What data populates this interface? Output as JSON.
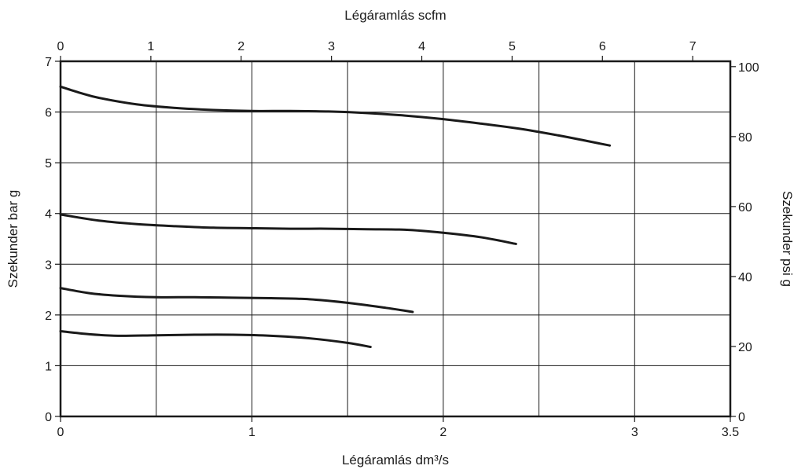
{
  "chart_data": {
    "type": "line",
    "xlabel_bottom": "Légáramlás dm³/s",
    "xlabel_top": "Légáramlás scfm",
    "ylabel_left": "Szekunder bar g",
    "ylabel_right": "Szekunder psi g",
    "xlim": [
      0,
      3.5
    ],
    "ylim": [
      0,
      7
    ],
    "x_ticks": [
      0,
      1,
      2,
      3,
      3.5
    ],
    "x_tick_labels": [
      "0",
      "1",
      "2",
      "3",
      "3.5"
    ],
    "x_grid": [
      0.5,
      1,
      1.5,
      2,
      2.5,
      3
    ],
    "y_ticks": [
      0,
      1,
      2,
      3,
      4,
      5,
      6,
      7
    ],
    "y_tick_labels": [
      "0",
      "1",
      "2",
      "3",
      "4",
      "5",
      "6",
      "7"
    ],
    "top_ticks_scfm": [
      0,
      1,
      2,
      3,
      4,
      5,
      6,
      7
    ],
    "top_tick_labels": [
      "0",
      "1",
      "2",
      "3",
      "4",
      "5",
      "6",
      "7"
    ],
    "scfm_per_dm3s": 2.119,
    "right_ticks_psi": [
      0,
      20,
      40,
      60,
      80,
      100
    ],
    "right_tick_labels": [
      "0",
      "20",
      "40",
      "60",
      "80",
      "100"
    ],
    "psi_per_bar": 14.5038,
    "grid": true,
    "series": [
      {
        "x": [
          0,
          0.1,
          0.2,
          0.4,
          0.6,
          0.8,
          1.0,
          1.2,
          1.4,
          1.6,
          1.8,
          2.0,
          2.2,
          2.4,
          2.6,
          2.75,
          2.87
        ],
        "y": [
          6.5,
          6.38,
          6.28,
          6.15,
          6.08,
          6.04,
          6.02,
          6.02,
          6.01,
          5.98,
          5.93,
          5.86,
          5.77,
          5.67,
          5.54,
          5.43,
          5.34
        ]
      },
      {
        "x": [
          0,
          0.2,
          0.4,
          0.6,
          0.8,
          1.0,
          1.2,
          1.4,
          1.6,
          1.8,
          2.0,
          2.2,
          2.38
        ],
        "y": [
          3.98,
          3.86,
          3.79,
          3.75,
          3.72,
          3.71,
          3.7,
          3.7,
          3.69,
          3.68,
          3.62,
          3.53,
          3.4
        ]
      },
      {
        "x": [
          0,
          0.15,
          0.3,
          0.5,
          0.7,
          0.9,
          1.1,
          1.3,
          1.5,
          1.7,
          1.84
        ],
        "y": [
          2.53,
          2.43,
          2.38,
          2.35,
          2.35,
          2.34,
          2.33,
          2.31,
          2.24,
          2.14,
          2.06
        ]
      },
      {
        "x": [
          0,
          0.15,
          0.3,
          0.5,
          0.7,
          0.9,
          1.1,
          1.3,
          1.5,
          1.62
        ],
        "y": [
          1.68,
          1.62,
          1.59,
          1.6,
          1.61,
          1.61,
          1.59,
          1.54,
          1.45,
          1.37
        ]
      }
    ]
  }
}
